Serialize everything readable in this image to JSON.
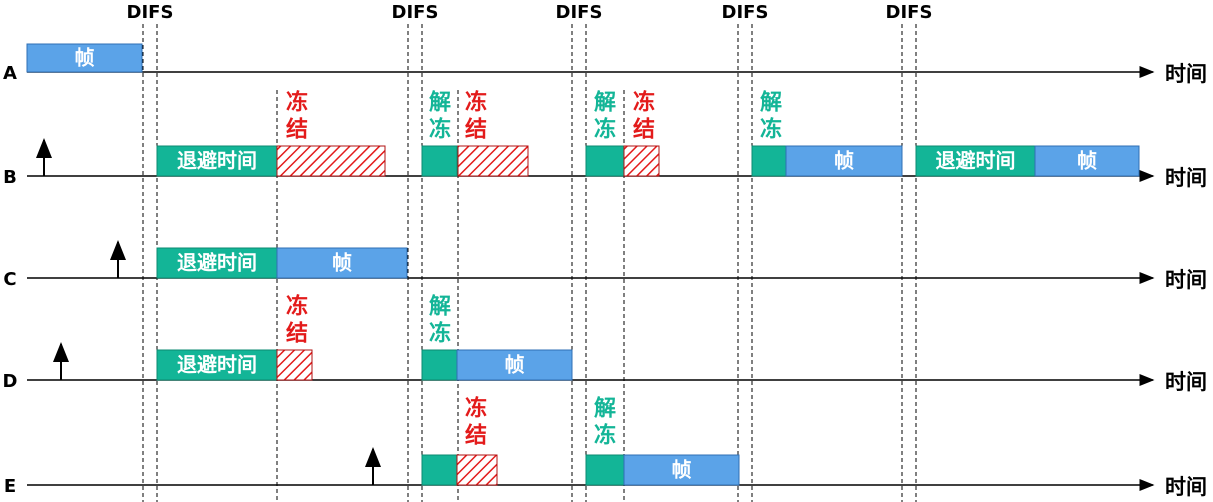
{
  "difs_labels": [
    "DIFS",
    "DIFS",
    "DIFS",
    "DIFS",
    "DIFS"
  ],
  "stations": [
    {
      "name": "A",
      "time_label": "时间",
      "blocks": [
        "帧"
      ]
    },
    {
      "name": "B",
      "time_label": "时间",
      "blocks": [
        "退避时间",
        "帧",
        "退避时间",
        "帧"
      ],
      "notes": [
        "冻结",
        "解冻",
        "冻结",
        "解冻",
        "冻结",
        "解冻"
      ]
    },
    {
      "name": "C",
      "time_label": "时间",
      "blocks": [
        "退避时间",
        "帧"
      ]
    },
    {
      "name": "D",
      "time_label": "时间",
      "blocks": [
        "退避时间",
        "帧"
      ],
      "notes": [
        "冻结",
        "解冻"
      ]
    },
    {
      "name": "E",
      "time_label": "时间",
      "blocks": [
        "帧"
      ],
      "notes": [
        "冻结",
        "解冻"
      ]
    }
  ]
}
